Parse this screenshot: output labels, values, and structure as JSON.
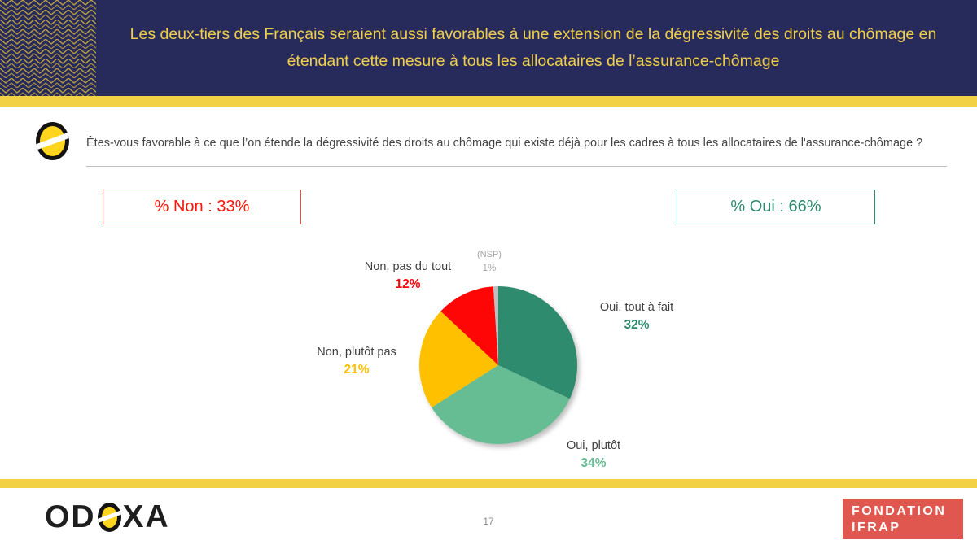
{
  "header": {
    "title": "Les deux-tiers des Français seraient aussi favorables à une extension de la dégressivité des droits au chômage en étendant cette mesure à tous les allocataires de l’assurance-chômage",
    "background_color": "#262b5c",
    "title_color": "#f0cd4a",
    "stripe_color": "#f3d145"
  },
  "question": {
    "text": "Êtes-vous favorable à ce que l’on étende la dégressivité des droits au chômage qui existe déjà pour les cadres à tous les allocataires de l'assurance-chômage ?"
  },
  "summary": {
    "non": {
      "label": "% Non : 33%",
      "color": "#ff1408"
    },
    "oui": {
      "label": "% Oui : 66%",
      "color": "#2e8b70"
    }
  },
  "chart_data": {
    "type": "pie",
    "start_angle_deg": 0,
    "direction": "clockwise",
    "series": [
      {
        "label": "Oui, tout à fait",
        "value": 32,
        "pct": "32%",
        "color": "#2e8b6e"
      },
      {
        "label": "Oui, plutôt",
        "value": 34,
        "pct": "34%",
        "color": "#66bd93"
      },
      {
        "label": "Non, plutôt pas",
        "value": 21,
        "pct": "21%",
        "color": "#ffc000"
      },
      {
        "label": "Non, pas du tout",
        "value": 12,
        "pct": "12%",
        "color": "#ff0606"
      },
      {
        "label": "(NSP)",
        "value": 1,
        "pct": "1%",
        "color": "#bfbfbf"
      }
    ],
    "title": "",
    "legend": "none"
  },
  "footer": {
    "odoxa_left": "OD",
    "odoxa_right": "XA",
    "page_number": "17",
    "ifrap_line1": "FONDATION",
    "ifrap_line2": "IFRAP",
    "ifrap_color": "#e0574f"
  }
}
